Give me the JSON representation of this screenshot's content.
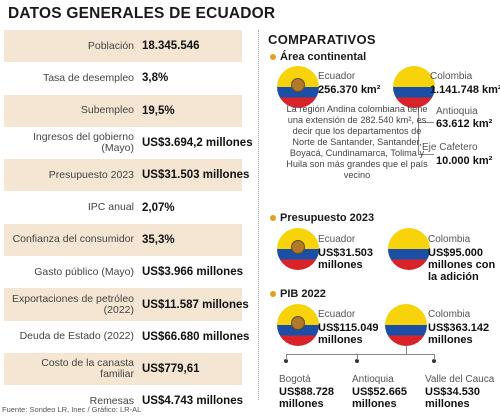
{
  "title": "DATOS GENERALES DE ECUADOR",
  "rows": [
    {
      "label": "Población",
      "value": "18.345.546"
    },
    {
      "label": "Tasa de desempleo",
      "value": "3,8%"
    },
    {
      "label": "Subempleo",
      "value": "19,5%"
    },
    {
      "label": "Ingresos del gobierno (Mayo)",
      "value": "US$3.694,2 millones"
    },
    {
      "label": "Presupuesto 2023",
      "value": "US$31.503 millones"
    },
    {
      "label": "IPC anual",
      "value": "2,07%"
    },
    {
      "label": "Confianza del consumidor",
      "value": "35,3%"
    },
    {
      "label": "Gasto público (Mayo)",
      "value": "US$3.966 millones"
    },
    {
      "label": "Exportaciones de petróleo (2022)",
      "value": "US$11.587 millones"
    },
    {
      "label": "Deuda de Estado (2022)",
      "value": "US$66.680 millones"
    },
    {
      "label": "Costo de la canasta familiar",
      "value": "US$779,61"
    },
    {
      "label": "Remesas",
      "value": "US$4.743 millones"
    }
  ],
  "source": "Fuente: Sondeo LR, Inec / Gráfico: LR-AL",
  "comparativos": {
    "title": "COMPARATIVOS",
    "area": {
      "heading": "Área continental",
      "ecuador_name": "Ecuador",
      "ecuador_value": "256.370 km²",
      "colombia_name": "Colombia",
      "colombia_value": "1.141.748 km²",
      "antioquia_name": "Antioquia",
      "antioquia_value": "63.612 km²",
      "eje_name": "Eje Cafetero",
      "eje_value": "10.000 km²",
      "description": "La región Andina colombiana tiene una extensión de 282.540 km², es decir que los departamentos de Norte de Santander, Santander, Boyacá, Cundinamarca, Tolima y Huila son más grandes que el país vecino"
    },
    "presupuesto": {
      "heading": "Presupuesto 2023",
      "ecuador_name": "Ecuador",
      "ecuador_value": "US$31.503 millones",
      "colombia_name": "Colombia",
      "colombia_value": "US$95.000 millones con la adición"
    },
    "pib": {
      "heading": "PIB 2022",
      "ecuador_name": "Ecuador",
      "ecuador_value": "US$115.049 millones",
      "colombia_name": "Colombia",
      "colombia_value": "US$363.142 millones",
      "regions": [
        {
          "name": "Bogotá",
          "value": "US$88.728 millones"
        },
        {
          "name": "Antioquia",
          "value": "US$52.665 millones"
        },
        {
          "name": "Valle del Cauca",
          "value": "US$34.530 millones"
        }
      ]
    }
  }
}
